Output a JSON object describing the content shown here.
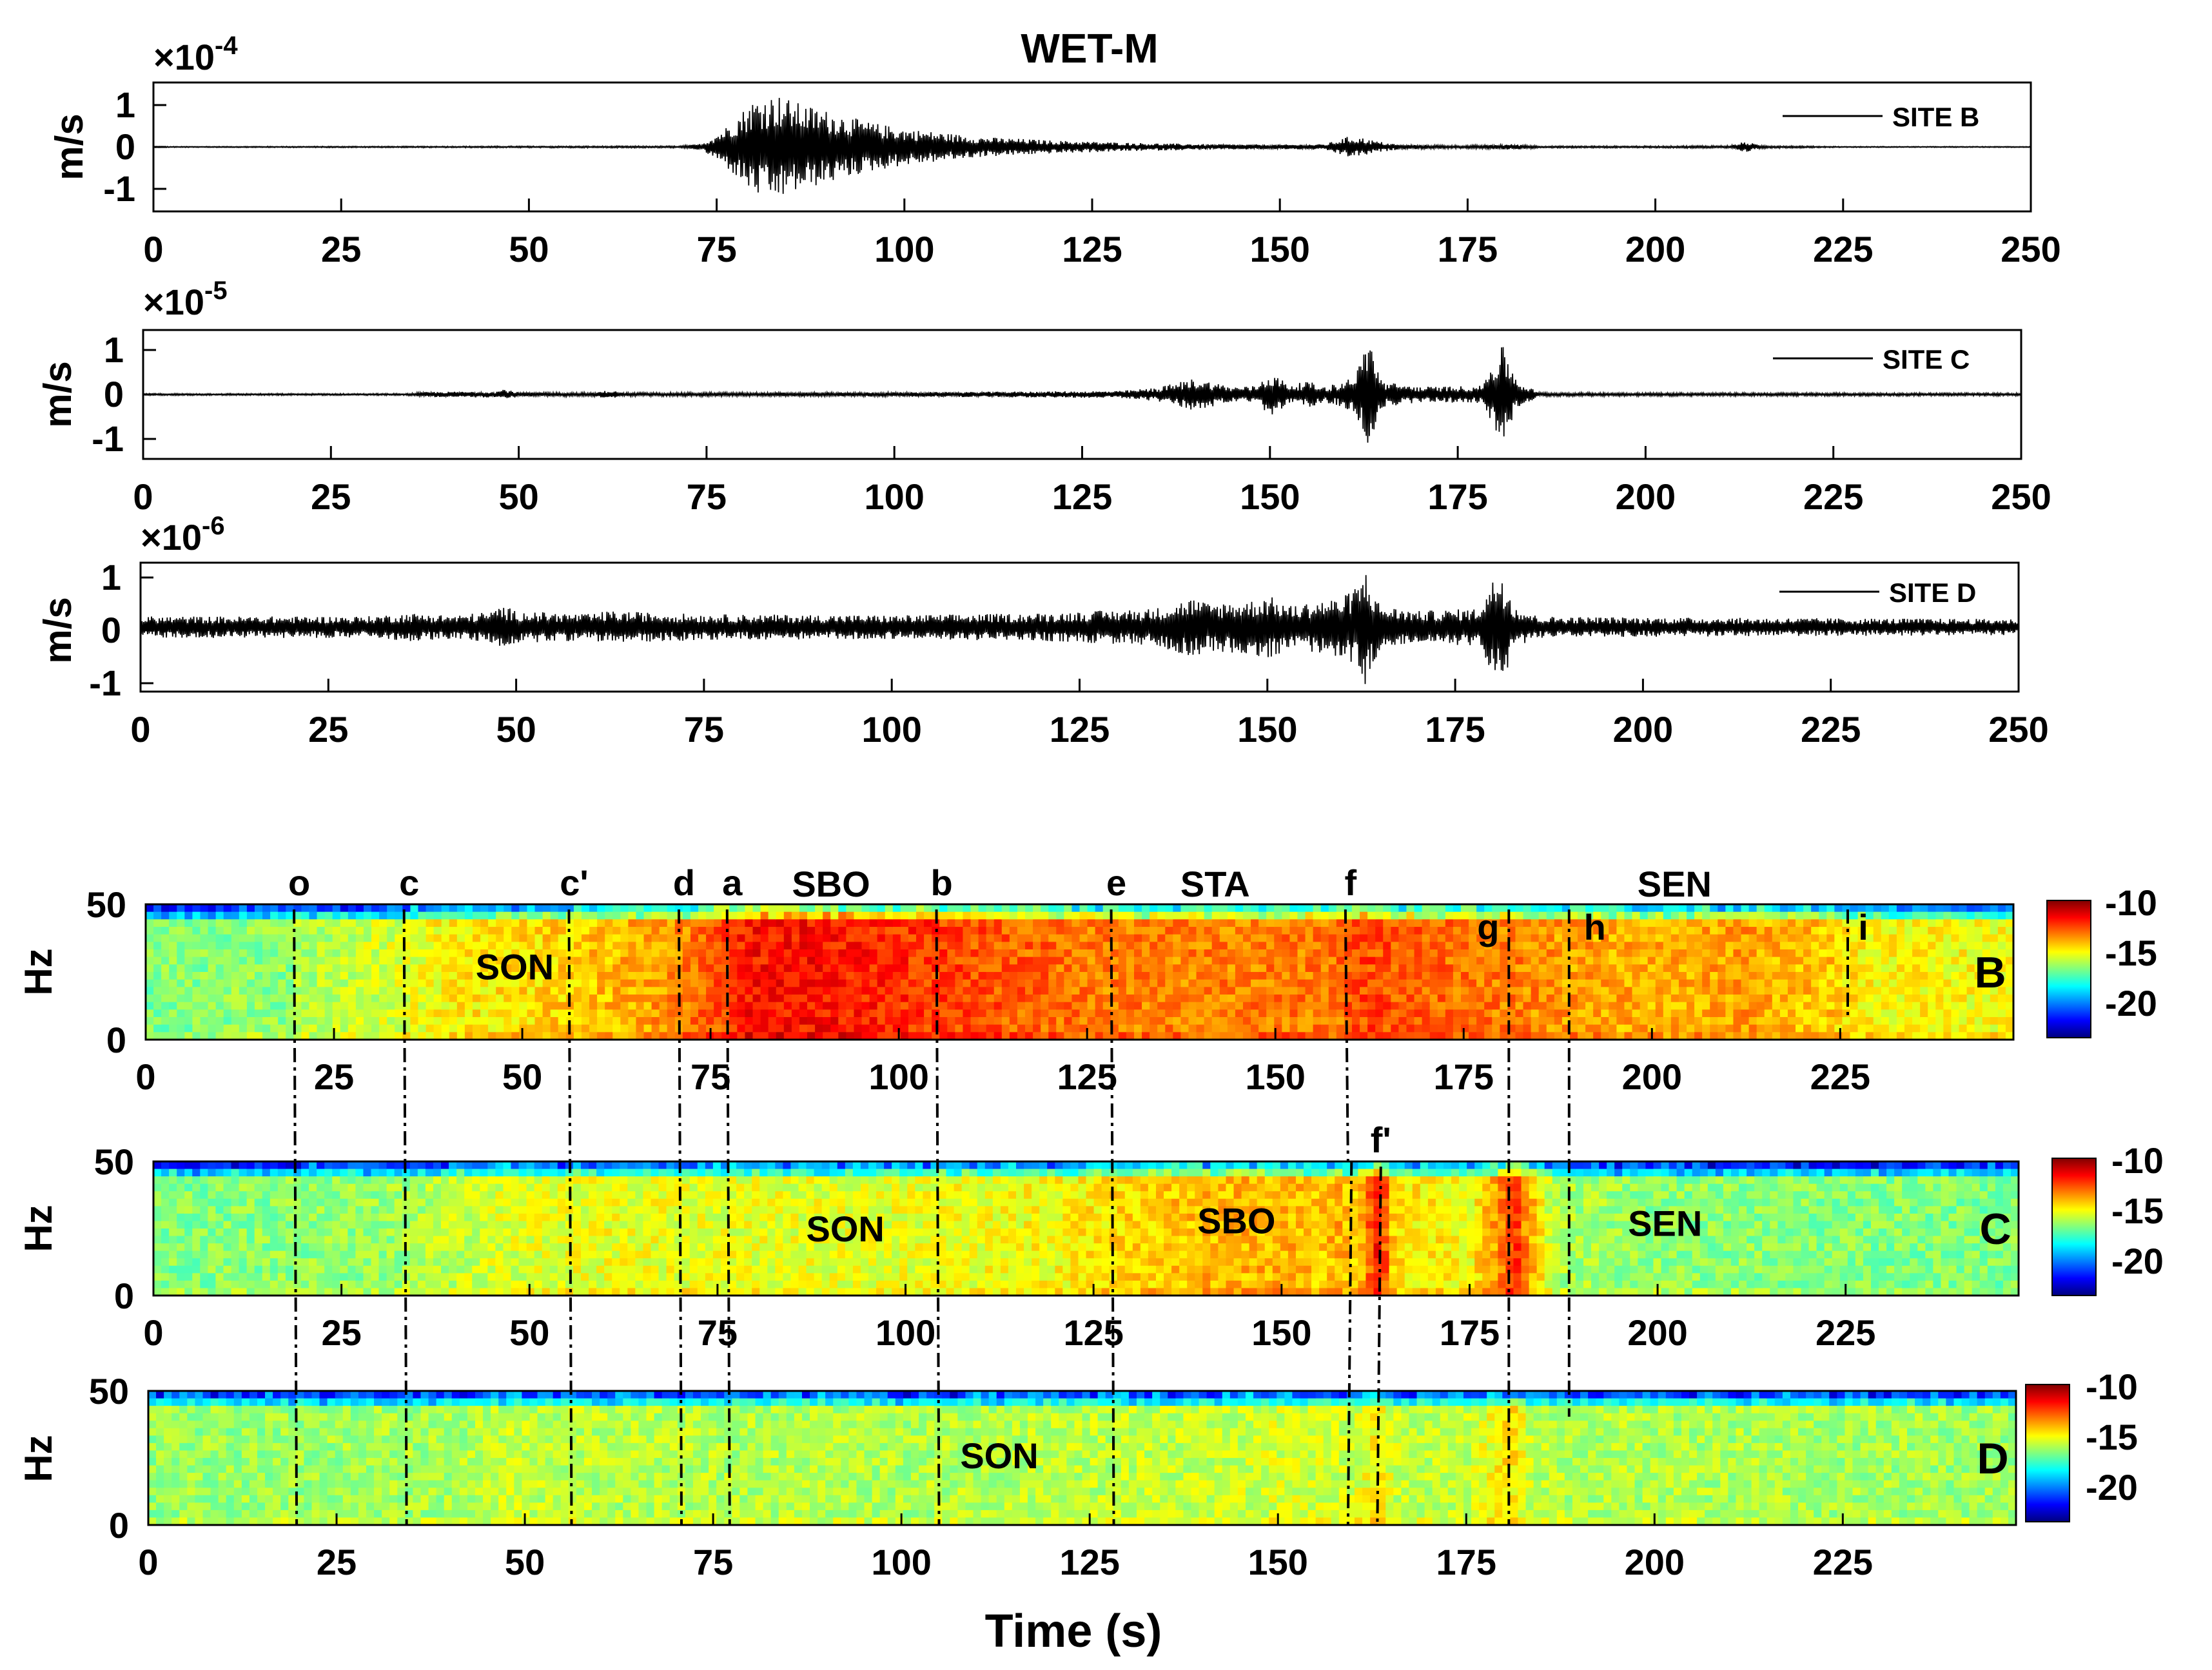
{
  "chart_data": [
    {
      "type": "line",
      "title": "WET-M",
      "ylabel": "m/s",
      "exponent_base": "×10",
      "exponent": "-4",
      "legend": "SITE B",
      "legend_position": "top-right",
      "xlim": [
        0,
        250
      ],
      "ylim": [
        -1.4,
        1.4
      ],
      "xticks": [
        "0",
        "25",
        "50",
        "75",
        "100",
        "125",
        "150",
        "175",
        "200",
        "225",
        "250"
      ],
      "yticks": [
        "1",
        "0",
        "-1"
      ],
      "envelope": {
        "x": [
          0,
          70,
          73,
          76,
          80,
          83,
          86,
          90,
          95,
          100,
          110,
          120,
          130,
          140,
          150,
          156,
          159,
          161,
          163,
          166,
          175,
          181,
          185,
          200,
          210,
          212,
          214,
          225,
          250
        ],
        "amplitude": [
          0.01,
          0.02,
          0.07,
          0.4,
          1.05,
          1.15,
          0.95,
          0.78,
          0.55,
          0.4,
          0.22,
          0.14,
          0.09,
          0.06,
          0.05,
          0.06,
          0.22,
          0.2,
          0.12,
          0.05,
          0.03,
          0.06,
          0.02,
          0.02,
          0.03,
          0.12,
          0.03,
          0.01,
          0.01
        ]
      }
    },
    {
      "type": "line",
      "title": "",
      "ylabel": "m/s",
      "exponent_base": "×10",
      "exponent": "-5",
      "legend": "SITE C",
      "legend_position": "top-right",
      "xlim": [
        0,
        250
      ],
      "ylim": [
        -1.5,
        1.5
      ],
      "xticks": [
        "0",
        "25",
        "50",
        "75",
        "100",
        "125",
        "150",
        "175",
        "200",
        "225",
        "250"
      ],
      "yticks": [
        "1",
        "0",
        "-1"
      ],
      "envelope": {
        "x": [
          0,
          35,
          38,
          47,
          48,
          50,
          60,
          62,
          64,
          100,
          130,
          135,
          140,
          145,
          148,
          150,
          153,
          155,
          157,
          160,
          162,
          163,
          165,
          170,
          178,
          181,
          183,
          186,
          250
        ],
        "amplitude": [
          0.02,
          0.02,
          0.06,
          0.07,
          0.13,
          0.05,
          0.04,
          0.1,
          0.04,
          0.05,
          0.08,
          0.16,
          0.38,
          0.18,
          0.2,
          0.5,
          0.22,
          0.32,
          0.18,
          0.3,
          0.7,
          1.45,
          0.3,
          0.18,
          0.2,
          1.15,
          0.3,
          0.04,
          0.03
        ]
      }
    },
    {
      "type": "line",
      "title": "",
      "ylabel": "m/s",
      "exponent_base": "×10",
      "exponent": "-6",
      "legend": "SITE D",
      "legend_position": "top-right",
      "xlim": [
        0,
        250
      ],
      "ylim": [
        -1.2,
        1.2
      ],
      "xticks": [
        "0",
        "25",
        "50",
        "75",
        "100",
        "125",
        "150",
        "175",
        "200",
        "225",
        "250"
      ],
      "yticks": [
        "1",
        "0",
        "-1"
      ],
      "envelope": {
        "x": [
          0,
          30,
          36,
          42,
          47,
          48,
          50,
          60,
          62,
          75,
          100,
          120,
          135,
          140,
          142,
          148,
          150,
          153,
          155,
          157,
          160,
          162,
          163,
          165,
          170,
          178,
          181,
          183,
          186,
          200,
          250
        ],
        "amplitude": [
          0.2,
          0.2,
          0.26,
          0.22,
          0.3,
          0.42,
          0.3,
          0.24,
          0.3,
          0.24,
          0.22,
          0.26,
          0.35,
          0.55,
          0.45,
          0.5,
          0.6,
          0.4,
          0.45,
          0.5,
          0.55,
          0.8,
          1.1,
          0.4,
          0.3,
          0.35,
          1.15,
          0.4,
          0.2,
          0.18,
          0.15
        ]
      }
    },
    {
      "type": "heatmap",
      "panel_label": "B",
      "ylabel": "Hz",
      "ylim": [
        0,
        50
      ],
      "yticks": [
        "50",
        "0"
      ],
      "xlim": [
        0,
        248
      ],
      "xticks": [
        "0",
        "25",
        "50",
        "75",
        "100",
        "125",
        "150",
        "175",
        "200",
        "225"
      ],
      "colorbar": {
        "ticks": [
          "-10",
          "-15",
          "-20"
        ],
        "range": [
          -22,
          -9
        ]
      },
      "power_profile": {
        "x": [
          0,
          19,
          20,
          34,
          40,
          56,
          62,
          71,
          76,
          80,
          90,
          104,
          110,
          127,
          140,
          158,
          162,
          170,
          181,
          188,
          200,
          213,
          215,
          224,
          226,
          228,
          248
        ],
        "level": [
          -15.5,
          -15.3,
          -15,
          -14.3,
          -13.8,
          -13.3,
          -13,
          -12.4,
          -11.6,
          -10.8,
          -10.8,
          -11.3,
          -11.6,
          -12.2,
          -12.3,
          -12.1,
          -11.5,
          -11.9,
          -12.2,
          -12.6,
          -12.9,
          -12.6,
          -12.8,
          -13.2,
          -13.6,
          -13.8,
          -14
        ]
      },
      "phase_lines": [
        {
          "label": "o",
          "x": 19.7
        },
        {
          "label": "c",
          "x": 34.3
        },
        {
          "label": "c'",
          "x": 56.2
        },
        {
          "label": "d",
          "x": 70.8
        },
        {
          "label": "a",
          "x": 77.2
        },
        {
          "label": "b",
          "x": 105
        },
        {
          "label": "e",
          "x": 128.2
        },
        {
          "label": "f",
          "x": 159.3
        },
        {
          "label": "g",
          "x": 181
        },
        {
          "label": "h",
          "x": 189
        },
        {
          "label": "i",
          "x": 226
        }
      ],
      "labels_above": [
        {
          "text": "SBO",
          "x": 91
        },
        {
          "text": "STA",
          "x": 142
        },
        {
          "text": "SEN",
          "x": 203
        }
      ],
      "labels_inside": [
        {
          "text": "SON",
          "x": 49,
          "y": 27
        }
      ]
    },
    {
      "type": "heatmap",
      "panel_label": "C",
      "ylabel": "Hz",
      "ylim": [
        0,
        50
      ],
      "yticks": [
        "50",
        "0"
      ],
      "xlim": [
        0,
        248
      ],
      "xticks": [
        "0",
        "25",
        "50",
        "75",
        "100",
        "125",
        "150",
        "175",
        "200",
        "225"
      ],
      "colorbar": {
        "ticks": [
          "-10",
          "-15",
          "-20"
        ],
        "range": [
          -22,
          -9
        ]
      },
      "power_profile": {
        "x": [
          0,
          30,
          45,
          60,
          75,
          100,
          120,
          130,
          140,
          150,
          155,
          158,
          160,
          162,
          163,
          165,
          175,
          180,
          181,
          182,
          186,
          200,
          248
        ],
        "level": [
          -15.5,
          -15.2,
          -14.4,
          -14.1,
          -14.2,
          -14.2,
          -13.9,
          -13.4,
          -13,
          -12.9,
          -13.2,
          -12.8,
          -13.4,
          -11.5,
          -10.8,
          -13.5,
          -14,
          -12,
          -10.8,
          -12,
          -14.9,
          -15.3,
          -15.5
        ]
      },
      "phase_lines": [
        {
          "label": "",
          "x": 19.7
        },
        {
          "label": "",
          "x": 34.3
        },
        {
          "label": "",
          "x": 56.2
        },
        {
          "label": "",
          "x": 70.8
        },
        {
          "label": "",
          "x": 77.2
        },
        {
          "label": "",
          "x": 105
        },
        {
          "label": "",
          "x": 128.2
        },
        {
          "label": "",
          "x": 159.3
        },
        {
          "label": "f'",
          "x": 163.2
        },
        {
          "label": "",
          "x": 181
        },
        {
          "label": "",
          "x": 189
        }
      ],
      "labels_above": [],
      "labels_inside": [
        {
          "text": "SON",
          "x": 92,
          "y": 25
        },
        {
          "text": "SBO",
          "x": 144,
          "y": 28
        },
        {
          "text": "SEN",
          "x": 201,
          "y": 27
        }
      ]
    },
    {
      "type": "heatmap",
      "panel_label": "D",
      "ylabel": "Hz",
      "ylim": [
        0,
        50
      ],
      "yticks": [
        "50",
        "0"
      ],
      "xlim": [
        0,
        248
      ],
      "xticks": [
        "0",
        "25",
        "50",
        "75",
        "100",
        "125",
        "150",
        "175",
        "200",
        "225"
      ],
      "xlabel": "Time (s)",
      "colorbar": {
        "ticks": [
          "-10",
          "-15",
          "-20"
        ],
        "range": [
          -22,
          -9
        ]
      },
      "power_profile": {
        "x": [
          0,
          40,
          48,
          60,
          100,
          140,
          150,
          160,
          163,
          166,
          175,
          181,
          184,
          248
        ],
        "level": [
          -15.2,
          -15,
          -14.6,
          -14.8,
          -14.9,
          -14.6,
          -14.4,
          -14.5,
          -13.8,
          -14.6,
          -14.7,
          -13.5,
          -14.8,
          -15.1
        ]
      },
      "phase_lines": [
        {
          "label": "",
          "x": 19.7
        },
        {
          "label": "",
          "x": 34.3
        },
        {
          "label": "",
          "x": 56.2
        },
        {
          "label": "",
          "x": 70.8
        },
        {
          "label": "",
          "x": 77.2
        },
        {
          "label": "",
          "x": 105
        },
        {
          "label": "",
          "x": 128.2
        },
        {
          "label": "",
          "x": 159.3
        },
        {
          "label": "",
          "x": 163.2
        },
        {
          "label": "",
          "x": 181
        }
      ],
      "labels_above": [],
      "labels_inside": [
        {
          "text": "SON",
          "x": 113,
          "y": 26
        }
      ]
    }
  ]
}
